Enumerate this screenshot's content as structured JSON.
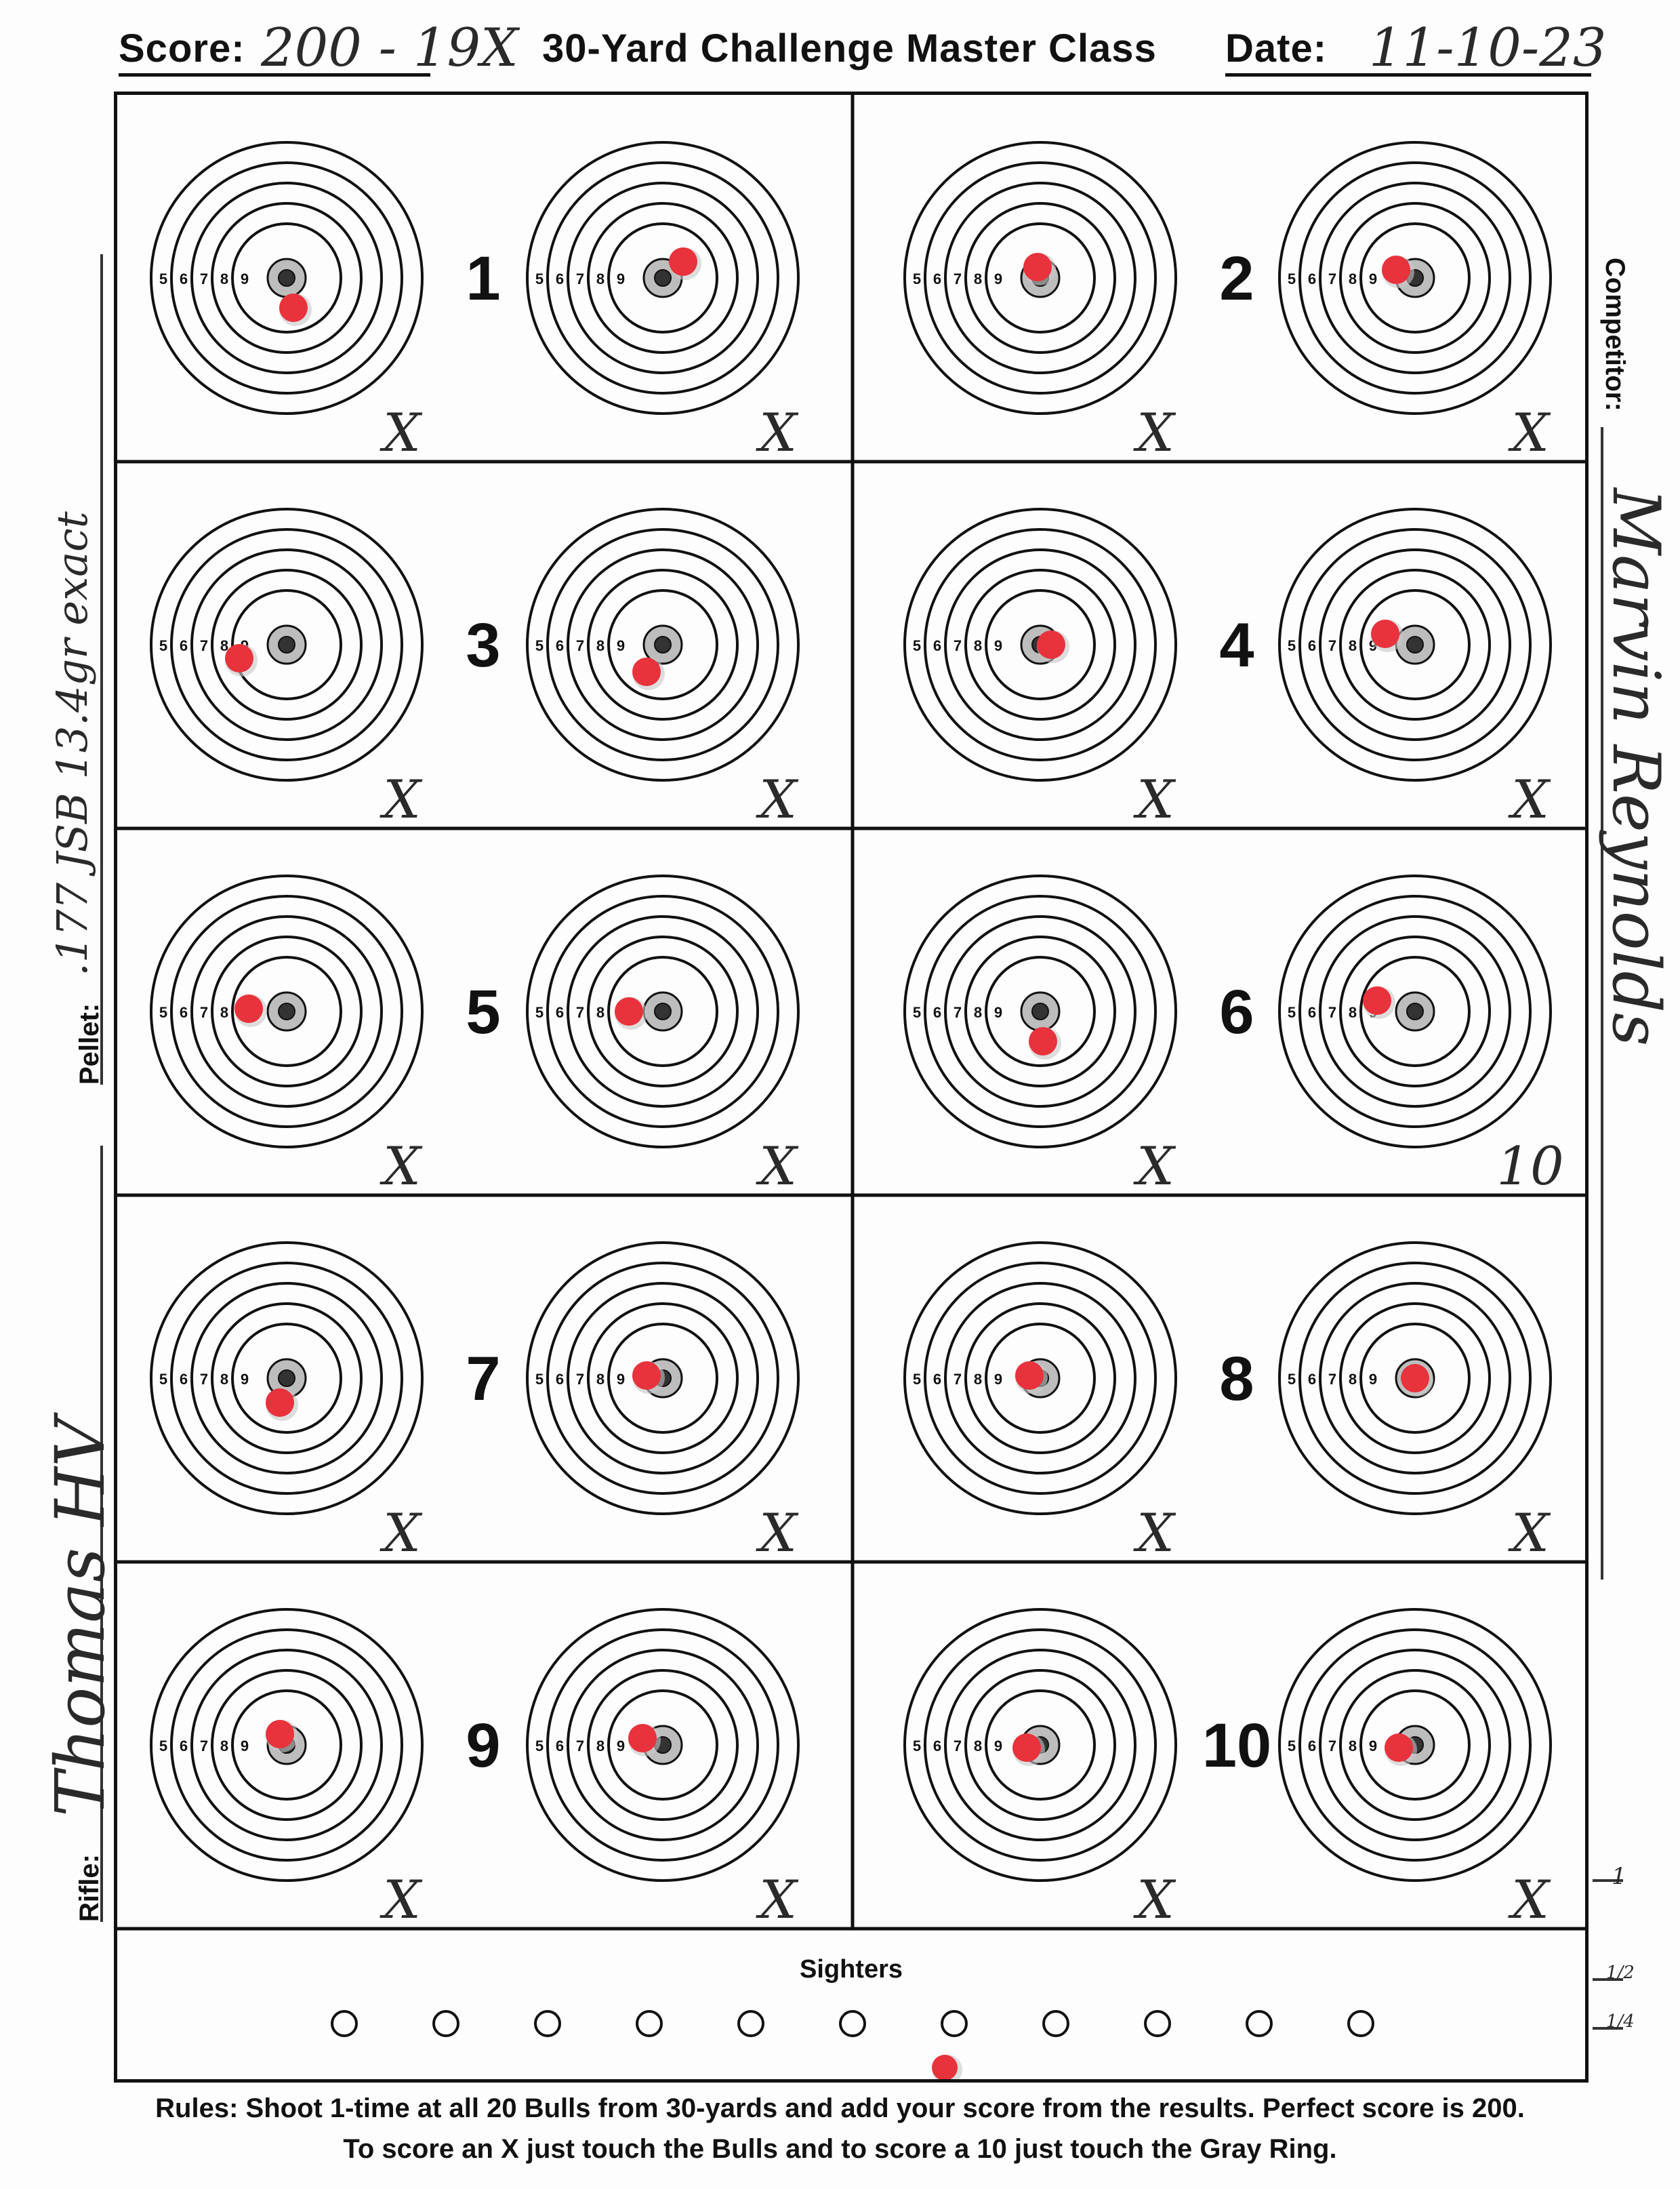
{
  "header": {
    "score_label": "Score:",
    "score_value": "200 - 19X",
    "title": "30-Yard Challenge Master Class",
    "date_label": "Date:",
    "date_value": "11-10-23"
  },
  "side_fields": {
    "competitor_label": "Competitor:",
    "competitor_value": "Marvin Reynolds",
    "pellet_label": "Pellet:",
    "pellet_value": ".177 JSB 13.4gr exact",
    "rifle_label": "Rifle:",
    "rifle_value": "Thomas HV"
  },
  "target": {
    "ring_labels": [
      "5",
      "6",
      "7",
      "8",
      "9"
    ],
    "colors": {
      "hit": "#e8323c",
      "bull": "#333333",
      "gray_ring": "#bdbdbd",
      "ink": "#111111"
    }
  },
  "pairs": [
    {
      "number": "1",
      "bulls": [
        {
          "mark": "X",
          "hit": [
            0.05,
            0.22
          ]
        },
        {
          "mark": "X",
          "hit": [
            0.15,
            -0.12
          ]
        }
      ]
    },
    {
      "number": "2",
      "bulls": [
        {
          "mark": "X",
          "hit": [
            -0.02,
            -0.08
          ]
        },
        {
          "mark": "X",
          "hit": [
            -0.14,
            -0.06
          ]
        }
      ]
    },
    {
      "number": "3",
      "bulls": [
        {
          "mark": "X",
          "hit": [
            -0.35,
            0.1
          ]
        },
        {
          "mark": "X",
          "hit": [
            -0.12,
            0.2
          ]
        }
      ]
    },
    {
      "number": "4",
      "bulls": [
        {
          "mark": "X",
          "hit": [
            0.08,
            0.0
          ]
        },
        {
          "mark": "X",
          "hit": [
            -0.22,
            -0.08
          ]
        }
      ]
    },
    {
      "number": "5",
      "bulls": [
        {
          "mark": "X",
          "hit": [
            -0.28,
            -0.02
          ]
        },
        {
          "mark": "X",
          "hit": [
            -0.25,
            0.0
          ]
        }
      ]
    },
    {
      "number": "6",
      "bulls": [
        {
          "mark": "X",
          "hit": [
            0.02,
            0.22
          ]
        },
        {
          "mark": "10",
          "hit": [
            -0.28,
            -0.08
          ]
        }
      ]
    },
    {
      "number": "7",
      "bulls": [
        {
          "mark": "X",
          "hit": [
            -0.05,
            0.18
          ]
        },
        {
          "mark": "X",
          "hit": [
            -0.12,
            -0.02
          ]
        }
      ]
    },
    {
      "number": "8",
      "bulls": [
        {
          "mark": "X",
          "hit": [
            -0.08,
            -0.02
          ]
        },
        {
          "mark": "X",
          "hit": [
            0.0,
            0.0
          ]
        }
      ]
    },
    {
      "number": "9",
      "bulls": [
        {
          "mark": "X",
          "hit": [
            -0.05,
            -0.08
          ]
        },
        {
          "mark": "X",
          "hit": [
            -0.15,
            -0.05
          ]
        }
      ]
    },
    {
      "number": "10",
      "bulls": [
        {
          "mark": "X",
          "hit": [
            -0.1,
            0.02
          ]
        },
        {
          "mark": "X",
          "hit": [
            -0.12,
            0.02
          ]
        }
      ]
    }
  ],
  "sighters": {
    "label": "Sighters",
    "count": 11,
    "hit_index": 6
  },
  "margin_notes": [
    "1",
    "1/2",
    "1/4"
  ],
  "rules": {
    "line1": "Rules: Shoot 1-time at all 20 Bulls from 30-yards and add your score from the results. Perfect score is 200.",
    "line2": "To score an X just touch the Bulls and to score a 10 just touch the Gray Ring."
  }
}
